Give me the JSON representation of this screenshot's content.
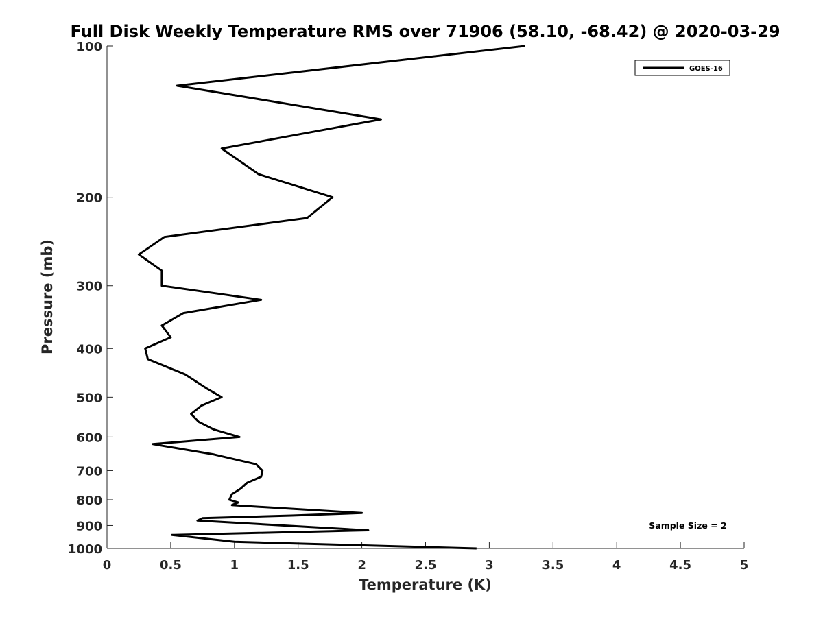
{
  "chart_data": {
    "type": "line",
    "title": "Full Disk Weekly Temperature RMS over 71906 (58.10, -68.42) @ 2020-03-29",
    "xlabel": "Temperature (K)",
    "ylabel": "Pressure (mb)",
    "xlim": [
      0,
      5
    ],
    "ylim": [
      100,
      1000
    ],
    "y_scale": "log",
    "y_reversed": true,
    "grid": false,
    "legend_position": "top-right",
    "x_ticks": [
      "0",
      "0.5",
      "1",
      "1.5",
      "2",
      "2.5",
      "3",
      "3.5",
      "4",
      "4.5",
      "5"
    ],
    "y_ticks": [
      "100",
      "200",
      "300",
      "400",
      "500",
      "600",
      "700",
      "800",
      "900",
      "1000"
    ],
    "series": [
      {
        "name": "GOES-16",
        "color": "#000000",
        "x": [
          3.28,
          0.55,
          2.15,
          0.9,
          1.19,
          1.77,
          1.57,
          0.45,
          0.25,
          0.43,
          0.43,
          1.21,
          0.6,
          0.43,
          0.5,
          0.3,
          0.32,
          0.61,
          0.78,
          0.9,
          0.74,
          0.66,
          0.72,
          0.84,
          1.04,
          0.36,
          0.84,
          1.17,
          1.22,
          1.21,
          1.1,
          1.05,
          0.98,
          0.96,
          1.03,
          0.98,
          2.0,
          1.45,
          0.75,
          0.71,
          2.05,
          0.51,
          1.0,
          2.9
        ],
        "y": [
          100,
          120,
          140,
          160,
          180,
          200,
          220,
          240,
          260,
          280,
          300,
          320,
          340,
          360,
          380,
          400,
          420,
          450,
          480,
          500,
          520,
          540,
          560,
          580,
          600,
          620,
          650,
          680,
          700,
          720,
          740,
          760,
          780,
          800,
          810,
          820,
          850,
          860,
          870,
          880,
          920,
          940,
          970,
          1000
        ]
      }
    ],
    "annotation": "Sample Size = 2"
  }
}
